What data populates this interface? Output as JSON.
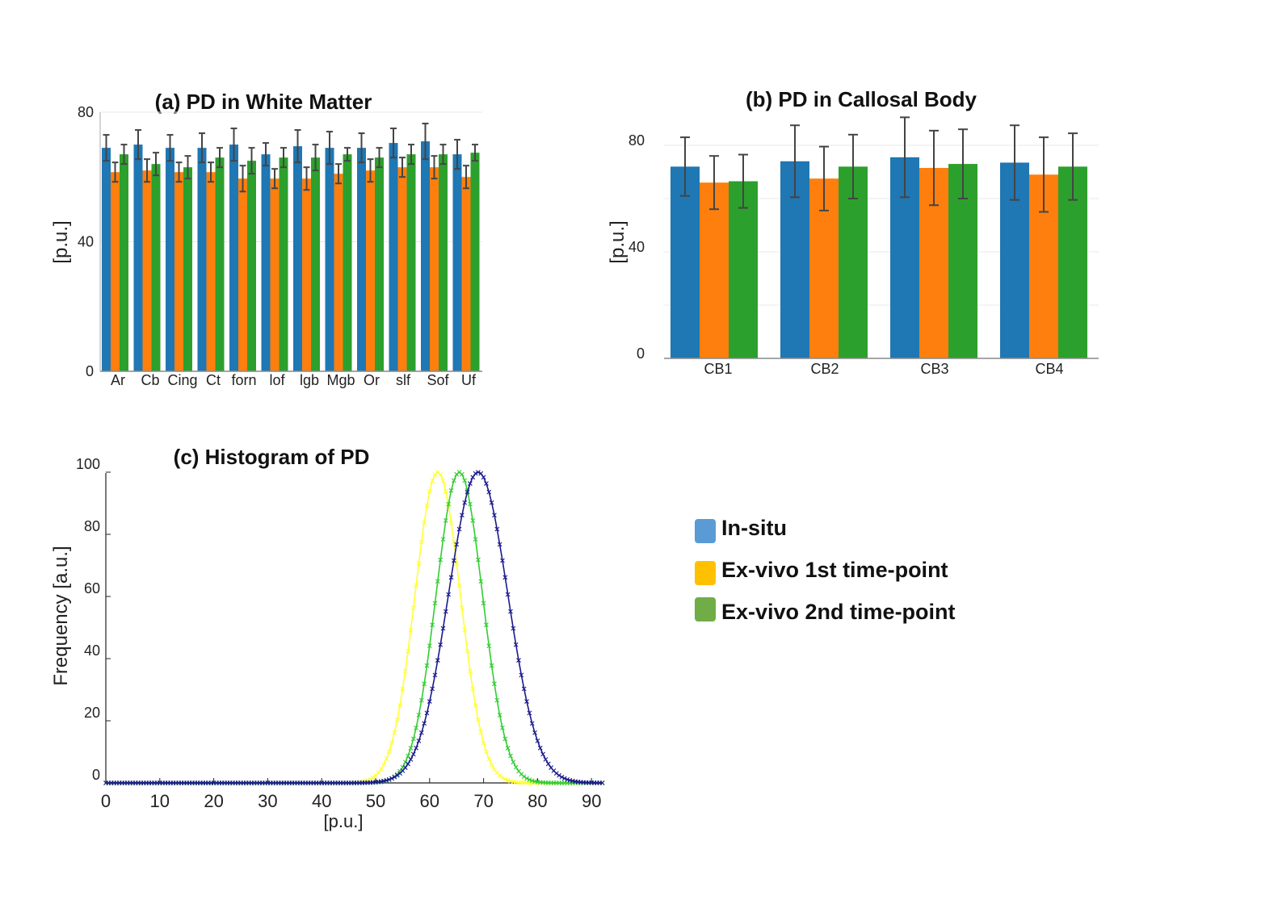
{
  "colors": {
    "in_situ": "#1f77b4",
    "ex_vivo_1": "#ff7f0e",
    "ex_vivo_2": "#2ca02c",
    "hist_in_situ": "#1a1a8c",
    "hist_ex_vivo_1": "#ffff33",
    "hist_ex_vivo_2": "#33cc33",
    "legend_in_situ": "#5b9bd5",
    "legend_ex_vivo_1": "#ffc000",
    "legend_ex_vivo_2": "#70ad47",
    "error_bar": "#444444",
    "axis": "#222222"
  },
  "legend": {
    "items": [
      {
        "label": "In-situ",
        "color_key": "legend_in_situ"
      },
      {
        "label": "Ex-vivo 1st time-point",
        "color_key": "legend_ex_vivo_1"
      },
      {
        "label": "Ex-vivo 2nd time-point",
        "color_key": "legend_ex_vivo_2"
      }
    ]
  },
  "chart_data": [
    {
      "id": "a",
      "type": "bar",
      "title": "(a) PD in White Matter",
      "ylabel": "[p.u.]",
      "xlabel": "",
      "ylim": [
        0,
        80
      ],
      "yticks": [
        0,
        40,
        80
      ],
      "categories": [
        "Ar",
        "Cb",
        "Cing",
        "Ct",
        "forn",
        "lof",
        "lgb",
        "Mgb",
        "Or",
        "slf",
        "Sof",
        "Uf"
      ],
      "series": [
        {
          "name": "In-situ",
          "values": [
            69,
            70,
            69,
            69,
            70,
            67,
            69.5,
            69,
            69,
            70.5,
            71,
            67
          ],
          "errors": [
            4,
            4.5,
            4,
            4.5,
            5,
            3.5,
            5,
            5,
            4.5,
            4.5,
            5.5,
            4.5
          ]
        },
        {
          "name": "Ex-vivo 1st time-point",
          "values": [
            61.5,
            62,
            61.5,
            61.5,
            59.5,
            59.5,
            59.5,
            61,
            62,
            63,
            63,
            60
          ],
          "errors": [
            3,
            3.5,
            3,
            3,
            4,
            3,
            3.5,
            3,
            3.5,
            3,
            3.5,
            3.5
          ]
        },
        {
          "name": "Ex-vivo 2nd time-point",
          "values": [
            67,
            64,
            63,
            66,
            65,
            66,
            66,
            67,
            66,
            67,
            67,
            67.5
          ],
          "errors": [
            3,
            3.5,
            3.5,
            3,
            4,
            3,
            4,
            2,
            3,
            3,
            3,
            2.5
          ]
        }
      ]
    },
    {
      "id": "b",
      "type": "bar",
      "title": "(b) PD in Callosal Body",
      "ylabel": "[p.u.]",
      "xlabel": "",
      "ylim": [
        0,
        80
      ],
      "yticks": [
        0,
        40,
        80
      ],
      "categories": [
        "CB1",
        "CB2",
        "CB3",
        "CB4"
      ],
      "series": [
        {
          "name": "In-situ",
          "values": [
            72,
            74,
            75.5,
            73.5
          ],
          "errors": [
            11,
            13.5,
            15,
            14
          ]
        },
        {
          "name": "Ex-vivo 1st time-point",
          "values": [
            66,
            67.5,
            71.5,
            69
          ],
          "errors": [
            10,
            12,
            14,
            14
          ]
        },
        {
          "name": "Ex-vivo 2nd time-point",
          "values": [
            66.5,
            72,
            73,
            72
          ],
          "errors": [
            10,
            12,
            13,
            12.5
          ]
        }
      ]
    },
    {
      "id": "c",
      "type": "line",
      "title": "(c) Histogram of PD",
      "xlabel": "[p.u.]",
      "ylabel": "Frequency [a.u.]",
      "xlim": [
        0,
        92
      ],
      "ylim": [
        0,
        100
      ],
      "xticks": [
        0,
        10,
        20,
        30,
        40,
        50,
        60,
        70,
        80,
        90
      ],
      "yticks": [
        0,
        20,
        40,
        60,
        80,
        100
      ],
      "series": [
        {
          "name": "In-situ",
          "peak_x": 69,
          "sigma": 5.5,
          "peak": 100,
          "color_key": "hist_in_situ"
        },
        {
          "name": "Ex-vivo 1st time-point",
          "peak_x": 61.5,
          "sigma": 4.2,
          "peak": 100,
          "color_key": "hist_ex_vivo_1"
        },
        {
          "name": "Ex-vivo 2nd time-point",
          "peak_x": 65.5,
          "sigma": 4.3,
          "peak": 100,
          "color_key": "hist_ex_vivo_2"
        }
      ]
    }
  ]
}
